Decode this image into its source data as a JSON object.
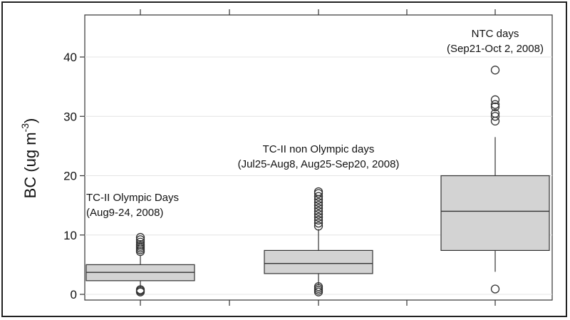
{
  "chart_data": {
    "type": "box",
    "title": "",
    "xlabel": "",
    "ylabel": {
      "main": "BC (ug m",
      "sup": "-3",
      "close": ")"
    },
    "ylim": [
      -1,
      45
    ],
    "yticks": [
      0,
      10,
      20,
      30,
      40
    ],
    "grid": true,
    "box_fill": "#d3d3d3",
    "boxes": [
      {
        "label_lines": [
          "TC-II Olympic Days",
          "(Aug9-24, 2008)"
        ],
        "q1": 2.3,
        "median": 3.7,
        "q3": 5.0,
        "whisker_low": 1.0,
        "whisker_high": 6.5,
        "outliers": [
          0.4,
          0.6,
          0.8,
          7.2,
          7.5,
          7.8,
          8.1,
          8.4,
          8.8,
          9.2,
          9.6
        ]
      },
      {
        "label_lines": [
          "TC-II non Olympic days",
          "(Jul25-Aug8, Aug25-Sep20, 2008)"
        ],
        "q1": 3.5,
        "median": 5.2,
        "q3": 7.4,
        "whisker_low": 1.5,
        "whisker_high": 11.0,
        "outliers": [
          0.4,
          0.7,
          1.0,
          1.3,
          11.5,
          12.0,
          12.5,
          13.0,
          13.5,
          14.0,
          14.5,
          15.0,
          15.5,
          16.0,
          16.5,
          17.0,
          17.3
        ]
      },
      {
        "label_lines": [
          "NTC days",
          "(Sep21-Oct 2, 2008)"
        ],
        "q1": 7.4,
        "median": 14.0,
        "q3": 20.0,
        "whisker_low": 3.8,
        "whisker_high": 26.5,
        "outliers": [
          0.9,
          29.2,
          30.0,
          30.5,
          31.6,
          32.0,
          32.8,
          37.8
        ]
      }
    ]
  }
}
